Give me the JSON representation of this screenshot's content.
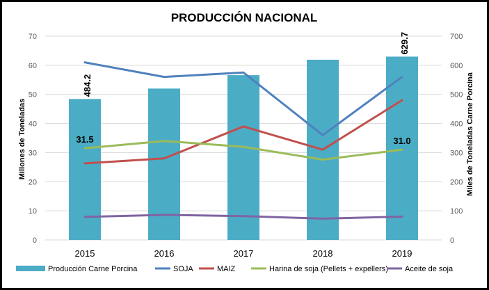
{
  "chart_data": {
    "type": "bar",
    "title": "PRODUCCIÓN NACIONAL",
    "categories": [
      "2015",
      "2016",
      "2017",
      "2018",
      "2019"
    ],
    "ylabel": "Millones de Toneladas",
    "y2label": "Miles de Toneladas  Carne Porcina",
    "ylim": [
      0,
      70
    ],
    "y2lim": [
      0,
      700
    ],
    "yticks": [
      "0",
      "10",
      "20",
      "30",
      "40",
      "50",
      "60",
      "70"
    ],
    "y2ticks": [
      "0",
      "100",
      "200",
      "300",
      "400",
      "500",
      "600",
      "700"
    ],
    "bar_series": {
      "name": "Producción Carne Porcina",
      "axis": "right",
      "color": "#4BACC6",
      "values": [
        484.2,
        520,
        566,
        619,
        629.7
      ]
    },
    "line_series": [
      {
        "name": "SOJA",
        "color": "#4F81BD",
        "values": [
          61,
          56,
          57.5,
          36,
          56
        ]
      },
      {
        "name": "MAIZ",
        "color": "#C0504D",
        "values": [
          26.3,
          28,
          39,
          31,
          48
        ]
      },
      {
        "name": "Harina de soja (Pellets + expellers)",
        "color": "#9BBB59",
        "values": [
          31.5,
          34,
          32,
          27.6,
          31.0
        ]
      },
      {
        "name": "Aceite de soja",
        "color": "#8064A2",
        "values": [
          7.9,
          8.6,
          8.2,
          7.3,
          8
        ]
      }
    ],
    "annotations": [
      {
        "text": "484.2",
        "series": "Producción Carne Porcina",
        "category": "2015",
        "value": 484.2
      },
      {
        "text": "629.7",
        "series": "Producción Carne Porcina",
        "category": "2019",
        "value": 629.7
      },
      {
        "text": "31.5",
        "series": "Harina de soja (Pellets + expellers)",
        "category": "2015",
        "value": 31.5
      },
      {
        "text": "31.0",
        "series": "Harina de soja (Pellets + expellers)",
        "category": "2019",
        "value": 31.0
      }
    ],
    "legend": {
      "position": "bottom",
      "items": [
        "Producción Carne Porcina",
        "SOJA",
        "MAIZ",
        "Harina de soja (Pellets + expellers)",
        "Aceite de soja"
      ]
    }
  }
}
